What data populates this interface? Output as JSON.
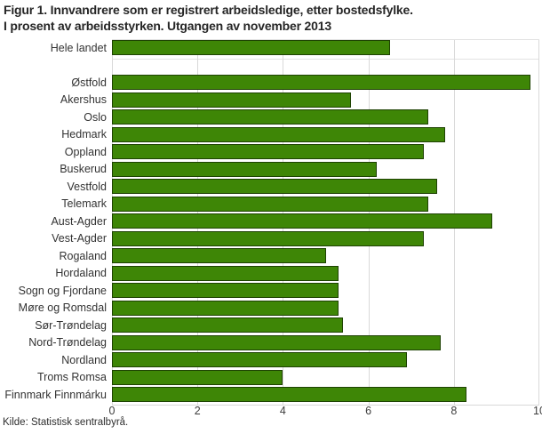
{
  "title": {
    "line1": "Figur 1. Innvandrere som er registrert arbeidsledige, etter bostedsfylke.",
    "line2": "I prosent av arbeidsstyrken. Utgangen av november 2013"
  },
  "footer": {
    "source": "Kilde: Statistisk sentralbyrå."
  },
  "chart_data": {
    "type": "bar",
    "orientation": "horizontal",
    "title": "Figur 1. Innvandrere som er registrert arbeidsledige, etter bostedsfylke. I prosent av arbeidsstyrken. Utgangen av november 2013",
    "categories": [
      "Hele landet",
      "Østfold",
      "Akershus",
      "Oslo",
      "Hedmark",
      "Oppland",
      "Buskerud",
      "Vestfold",
      "Telemark",
      "Aust-Agder",
      "Vest-Agder",
      "Rogaland",
      "Hordaland",
      "Sogn og Fjordane",
      "Møre og Romsdal",
      "Sør-Trøndelag",
      "Nord-Trøndelag",
      "Nordland",
      "Troms Romsa",
      "Finnmark Finnmárku"
    ],
    "values": [
      6.5,
      9.8,
      5.6,
      7.4,
      7.8,
      7.3,
      6.2,
      7.6,
      7.4,
      8.9,
      7.3,
      5.0,
      5.3,
      5.3,
      5.3,
      5.4,
      7.7,
      6.9,
      4.0,
      8.3
    ],
    "unit": "percent",
    "xlabel": "",
    "ylabel": "",
    "xlim": [
      0,
      10
    ],
    "xticks": [
      0,
      2,
      4,
      6,
      8,
      10
    ],
    "grid": true,
    "gap_after_first": true,
    "bar_color": "#3e8606",
    "bar_border_color": "#1e4203",
    "gridline_color": "#d9d9d9",
    "source": "Kilde: Statistisk sentralbyrå."
  }
}
